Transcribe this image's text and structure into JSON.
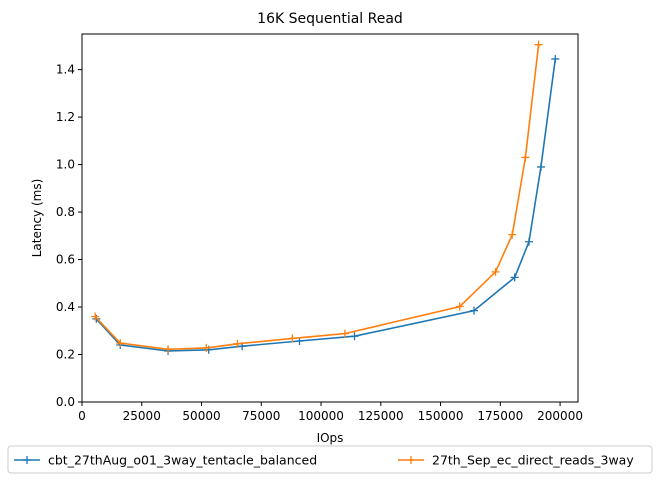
{
  "chart_data": {
    "type": "line",
    "title": "16K  Sequential Read",
    "xlabel": "IOps",
    "ylabel": "Latency (ms)",
    "xlim": [
      0,
      207500
    ],
    "ylim": [
      0,
      1.55
    ],
    "xticks": [
      0,
      25000,
      50000,
      75000,
      100000,
      125000,
      150000,
      175000,
      200000
    ],
    "xtick_labels": [
      "0",
      "25000",
      "50000",
      "75000",
      "100000",
      "125000",
      "150000",
      "175000",
      "200000"
    ],
    "yticks": [
      0.0,
      0.2,
      0.4,
      0.6,
      0.8,
      1.0,
      1.2,
      1.4
    ],
    "ytick_labels": [
      "0.0",
      "0.2",
      "0.4",
      "0.6",
      "0.8",
      "1.0",
      "1.2",
      "1.4"
    ],
    "grid": false,
    "legend_position": "below",
    "series": [
      {
        "name": "cbt_27thAug_o01_3way_tentacle_balanced",
        "color": "#1f77b4",
        "marker": "plus",
        "x": [
          6000,
          16000,
          36000,
          53000,
          67000,
          91000,
          114000,
          164000,
          181000,
          187000,
          192000,
          198000
        ],
        "y": [
          0.35,
          0.24,
          0.215,
          0.22,
          0.235,
          0.257,
          0.277,
          0.385,
          0.525,
          0.675,
          0.99,
          1.445
        ]
      },
      {
        "name": "27th_Sep_ec_direct_reads_3way",
        "color": "#ff7f0e",
        "marker": "plus",
        "x": [
          5500,
          16000,
          36000,
          52000,
          65000,
          88000,
          110000,
          158000,
          173000,
          180000,
          185500,
          191000
        ],
        "y": [
          0.36,
          0.248,
          0.222,
          0.228,
          0.245,
          0.268,
          0.288,
          0.402,
          0.548,
          0.705,
          1.03,
          1.505
        ]
      }
    ]
  }
}
